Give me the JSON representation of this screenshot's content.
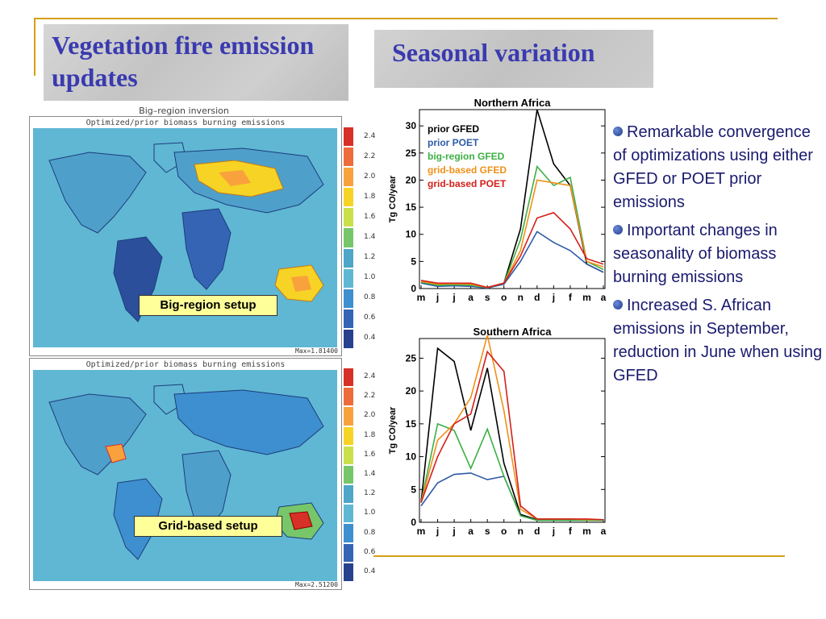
{
  "slide": {
    "title": "Vegetation fire emission updates",
    "subtitle": "Seasonal variation",
    "accent_color": "#d4a017",
    "title_color": "#3a3ab0"
  },
  "maps": {
    "figure_title": "Big–region inversion",
    "panel_header": "Optimized/prior biomass burning emissions",
    "colorbar_ticks": [
      "2.4",
      "2.2",
      "2.0",
      "1.8",
      "1.6",
      "1.4",
      "1.2",
      "1.0",
      "0.8",
      "0.6",
      "0.4"
    ],
    "colorbar_colors": [
      "#d73027",
      "#ee6b3b",
      "#f9a13c",
      "#f7d325",
      "#c9e04a",
      "#77c66a",
      "#4ea6c9",
      "#5fb7d4",
      "#3e8fcf",
      "#3564b4",
      "#27418f"
    ],
    "top": {
      "setup_label": "Big-region setup",
      "max_label": "Max=1.81400"
    },
    "bottom": {
      "setup_label": "Grid-based setup",
      "max_label": "Max=2.51200"
    }
  },
  "bullets": [
    {
      "text": "Remarkable convergence of optimizations using either GFED or POET prior emissions"
    },
    {
      "text": "Important changes in seasonality of biomass burning emissions"
    },
    {
      "text": "Increased S. African emissions in September, reduction in June when using GFED"
    }
  ],
  "chart_data": [
    {
      "type": "line",
      "title": "Northern Africa",
      "ylabel": "Tg CO/year",
      "xlabel": "",
      "categories": [
        "m",
        "j",
        "j",
        "a",
        "s",
        "o",
        "n",
        "d",
        "j",
        "f",
        "m",
        "a"
      ],
      "ylim": [
        0,
        33
      ],
      "yticks": [
        0,
        5,
        10,
        15,
        20,
        25,
        30
      ],
      "legend_position": "top-left",
      "series": [
        {
          "name": "prior GFED",
          "color": "#000000",
          "values": [
            1.2,
            0.5,
            0.6,
            0.5,
            0.2,
            1.0,
            11,
            33,
            23,
            19,
            4.5,
            3
          ]
        },
        {
          "name": "prior POET",
          "color": "#2e5aa8",
          "values": [
            1.0,
            0.4,
            0.5,
            0.4,
            0.1,
            0.8,
            5,
            10.5,
            8.5,
            7,
            4.5,
            3
          ]
        },
        {
          "name": "big-region GFED",
          "color": "#3cb043",
          "values": [
            1.2,
            0.6,
            0.7,
            0.6,
            0.2,
            1.0,
            9,
            22.5,
            19,
            20.5,
            5,
            3.5
          ]
        },
        {
          "name": "grid-based GFED",
          "color": "#f0901a",
          "values": [
            1.3,
            0.8,
            0.9,
            0.8,
            0.2,
            1.0,
            7,
            20,
            19.5,
            19,
            5,
            4
          ]
        },
        {
          "name": "grid-based POET",
          "color": "#d4201a",
          "values": [
            1.5,
            1.0,
            1.0,
            1.0,
            0.2,
            1.0,
            6,
            13,
            14,
            11,
            5.5,
            4.5
          ]
        }
      ]
    },
    {
      "type": "line",
      "title": "Southern Africa",
      "ylabel": "Tg CO/year",
      "xlabel": "",
      "categories": [
        "m",
        "j",
        "j",
        "a",
        "s",
        "o",
        "n",
        "d",
        "j",
        "f",
        "m",
        "a"
      ],
      "ylim": [
        0,
        28
      ],
      "yticks": [
        0,
        5,
        10,
        15,
        20,
        25
      ],
      "series": [
        {
          "name": "prior GFED",
          "color": "#000000",
          "values": [
            3,
            26.5,
            24.5,
            14,
            23.5,
            9,
            1.2,
            0.4,
            0.3,
            0.3,
            0.3,
            0.3
          ]
        },
        {
          "name": "prior POET",
          "color": "#2e5aa8",
          "values": [
            2.5,
            6,
            7.3,
            7.5,
            6.5,
            7,
            1.0,
            0.3,
            0.3,
            0.3,
            0.3,
            0.3
          ]
        },
        {
          "name": "big-region GFED",
          "color": "#3cb043",
          "values": [
            3,
            15,
            14,
            8.2,
            14.2,
            7,
            1.0,
            0.3,
            0.3,
            0.3,
            0.3,
            0.3
          ]
        },
        {
          "name": "grid-based GFED",
          "color": "#f0901a",
          "values": [
            3,
            12.5,
            15,
            19,
            28.5,
            17,
            2.0,
            0.5,
            0.5,
            0.5,
            0.4,
            0.4
          ]
        },
        {
          "name": "grid-based POET",
          "color": "#d4201a",
          "values": [
            3,
            10,
            15,
            16.5,
            26,
            23,
            2.5,
            0.5,
            0.5,
            0.5,
            0.5,
            0.4
          ]
        }
      ]
    }
  ]
}
